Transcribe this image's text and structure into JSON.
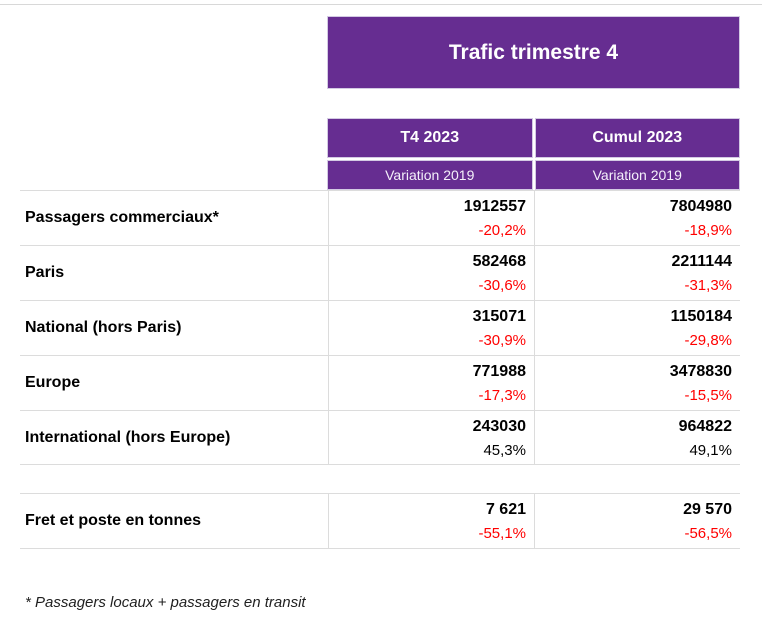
{
  "colors": {
    "purple": "#662D91",
    "negative_variation": "#FF0000",
    "positive_variation": "#000000",
    "grid_line": "#DCDCDC"
  },
  "banner": {
    "title": "Trafic trimestre 4"
  },
  "table": {
    "column_headers": [
      {
        "period": "T4 2023",
        "comparison": "Variation 2019"
      },
      {
        "period": "Cumul 2023",
        "comparison": "Variation 2019"
      }
    ],
    "passenger_rows": [
      {
        "label": "Passagers commerciaux*",
        "t4_value": "1912557",
        "t4_variation": "-20,2%",
        "cumul_value": "7804980",
        "cumul_variation": "-18,9%"
      },
      {
        "label": "Paris",
        "t4_value": "582468",
        "t4_variation": "-30,6%",
        "cumul_value": "2211144",
        "cumul_variation": "-31,3%"
      },
      {
        "label": "National (hors Paris)",
        "t4_value": "315071",
        "t4_variation": "-30,9%",
        "cumul_value": "1150184",
        "cumul_variation": "-29,8%"
      },
      {
        "label": "Europe",
        "t4_value": "771988",
        "t4_variation": "-17,3%",
        "cumul_value": "3478830",
        "cumul_variation": "-15,5%"
      },
      {
        "label": "International (hors Europe)",
        "t4_value": "243030",
        "t4_variation": "45,3%",
        "cumul_value": "964822",
        "cumul_variation": "49,1%"
      }
    ],
    "freight_rows": [
      {
        "label": "Fret et poste en tonnes",
        "t4_value": "7 621",
        "t4_variation": "-55,1%",
        "cumul_value": "29 570",
        "cumul_variation": "-56,5%"
      }
    ]
  },
  "footnote": "* Passagers locaux + passagers en transit"
}
